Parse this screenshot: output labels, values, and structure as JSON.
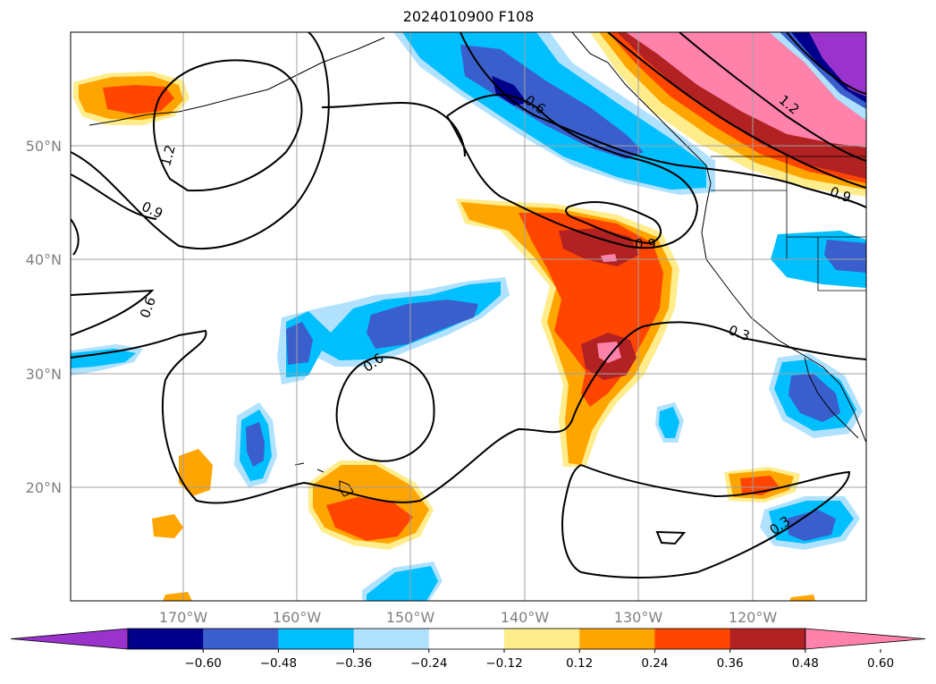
{
  "title": "2024010900 F108",
  "lat_ticks": [
    "50°N",
    "40°N",
    "30°N",
    "20°N"
  ],
  "lon_ticks": [
    "170°W",
    "160°W",
    "150°W",
    "140°W",
    "130°W",
    "120°W"
  ],
  "colorbar": {
    "ticks": [
      "−0.60",
      "−0.48",
      "−0.36",
      "−0.24",
      "−0.12",
      "0.12",
      "0.24",
      "0.36",
      "0.48",
      "0.60"
    ],
    "colors": [
      "#9933cc",
      "#00008b",
      "#3a5fcd",
      "#00bfff",
      "#b0e2ff",
      "#ffffff",
      "#ffec8b",
      "#ffa500",
      "#ff4500",
      "#b22222",
      "#ff82ab"
    ]
  },
  "contour_labels": [
    "1.2",
    "0.9",
    "0.6",
    "0.6",
    "0.6",
    "0.9",
    "0.3",
    "0.3",
    "1.2",
    "0.9"
  ]
}
